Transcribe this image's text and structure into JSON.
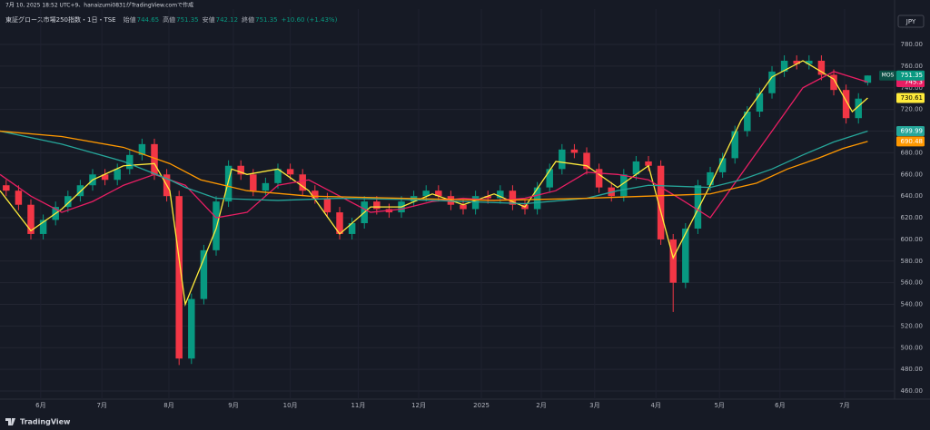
{
  "header": {
    "created": "7月 10, 2025 18:52 UTC+9、hanaizumi0831がTradingView.comで作成",
    "symbol": "東証グロース市場250指数・1日・TSE",
    "ohlc_labels": [
      "始値",
      "高値",
      "安値",
      "終値"
    ],
    "change": "+10.60 (+1.43%)",
    "currency": "JPY",
    "brand": "TradingView"
  },
  "chart_data": {
    "type": "candlestick",
    "x": [
      2,
      6,
      10,
      14,
      18,
      22,
      26,
      30,
      34,
      38,
      42,
      46,
      50,
      54,
      58,
      62,
      66,
      70,
      74,
      78,
      82,
      86,
      90,
      94,
      98,
      102,
      106,
      110,
      114,
      118,
      122,
      126,
      130,
      134,
      138,
      142,
      146,
      150,
      154,
      158,
      162,
      166,
      170,
      174,
      178,
      182,
      186,
      190,
      194,
      198,
      202,
      206,
      210,
      214,
      218,
      222,
      226,
      230,
      234,
      238,
      242,
      246,
      250,
      254,
      258,
      262,
      266,
      270,
      274,
      278,
      281
    ],
    "open": [
      650,
      645,
      632,
      605,
      618,
      630,
      640,
      650,
      660,
      655,
      665,
      678,
      688,
      660,
      640,
      490,
      545,
      590,
      635,
      668,
      660,
      645,
      652,
      665,
      660,
      645,
      638,
      625,
      605,
      615,
      635,
      628,
      625,
      635,
      640,
      645,
      640,
      632,
      628,
      640,
      638,
      645,
      632,
      628,
      648,
      665,
      683,
      680,
      665,
      648,
      640,
      660,
      672,
      668,
      600,
      560,
      610,
      650,
      662,
      675,
      700,
      718,
      735,
      755,
      765,
      762,
      765,
      752,
      738,
      712,
      744.65
    ],
    "high": [
      655,
      650,
      637,
      623,
      635,
      645,
      655,
      665,
      665,
      670,
      683,
      693,
      693,
      665,
      645,
      550,
      595,
      640,
      673,
      673,
      665,
      657,
      670,
      670,
      665,
      650,
      643,
      630,
      620,
      640,
      640,
      633,
      640,
      645,
      650,
      650,
      645,
      637,
      645,
      645,
      650,
      650,
      637,
      653,
      670,
      688,
      688,
      685,
      670,
      653,
      665,
      677,
      677,
      673,
      605,
      615,
      655,
      667,
      680,
      705,
      723,
      740,
      760,
      770,
      770,
      770,
      770,
      757,
      743,
      735,
      751.35
    ],
    "low": [
      640,
      627,
      600,
      600,
      613,
      625,
      635,
      645,
      650,
      650,
      660,
      673,
      655,
      635,
      484,
      485,
      540,
      585,
      630,
      655,
      640,
      640,
      647,
      655,
      640,
      633,
      620,
      600,
      600,
      610,
      623,
      620,
      620,
      630,
      635,
      635,
      627,
      623,
      623,
      633,
      633,
      627,
      623,
      623,
      643,
      660,
      675,
      660,
      643,
      635,
      635,
      655,
      663,
      595,
      533,
      555,
      605,
      645,
      657,
      670,
      695,
      713,
      730,
      750,
      757,
      757,
      747,
      733,
      707,
      707,
      742.12
    ],
    "close": [
      645,
      632,
      605,
      618,
      630,
      640,
      650,
      660,
      655,
      665,
      678,
      688,
      660,
      640,
      490,
      545,
      590,
      635,
      668,
      660,
      645,
      652,
      665,
      660,
      645,
      638,
      625,
      605,
      615,
      635,
      628,
      625,
      635,
      640,
      645,
      640,
      632,
      628,
      640,
      638,
      645,
      632,
      628,
      648,
      665,
      683,
      680,
      665,
      648,
      640,
      660,
      672,
      668,
      600,
      560,
      610,
      650,
      662,
      675,
      700,
      718,
      735,
      755,
      765,
      762,
      765,
      752,
      738,
      712,
      730,
      751.35
    ],
    "up_color": "#089981",
    "down_color": "#f23645",
    "last_label": "MOS",
    "ma": [
      {
        "color": "#ffeb3b",
        "x": [
          0,
          10,
          20,
          30,
          40,
          50,
          55,
          60,
          70,
          75,
          80,
          90,
          100,
          110,
          120,
          130,
          140,
          150,
          160,
          170,
          180,
          190,
          200,
          210,
          218,
          230,
          240,
          250,
          260,
          270,
          276,
          281
        ],
        "values": [
          645,
          608,
          628,
          655,
          668,
          670,
          645,
          540,
          610,
          665,
          660,
          665,
          645,
          605,
          630,
          630,
          642,
          632,
          642,
          630,
          672,
          668,
          648,
          668,
          583,
          650,
          710,
          750,
          765,
          748,
          718,
          730.61
        ]
      },
      {
        "color": "#e91e63",
        "x": [
          0,
          10,
          20,
          30,
          40,
          50,
          60,
          70,
          80,
          90,
          100,
          110,
          120,
          130,
          140,
          150,
          160,
          170,
          180,
          190,
          200,
          210,
          220,
          230,
          240,
          250,
          260,
          270,
          281
        ],
        "values": [
          660,
          640,
          625,
          635,
          650,
          660,
          650,
          620,
          625,
          650,
          655,
          640,
          625,
          628,
          635,
          638,
          636,
          638,
          645,
          662,
          660,
          655,
          638,
          620,
          660,
          700,
          740,
          755,
          745.3
        ]
      },
      {
        "color": "#26a69a",
        "x": [
          0,
          20,
          40,
          55,
          60,
          70,
          90,
          110,
          130,
          150,
          170,
          190,
          200,
          210,
          230,
          240,
          250,
          260,
          270,
          281
        ],
        "values": [
          700,
          688,
          672,
          655,
          648,
          638,
          636,
          638,
          637,
          635,
          633,
          638,
          645,
          650,
          648,
          655,
          665,
          678,
          690,
          699.99
        ]
      },
      {
        "color": "#ff9800",
        "x": [
          0,
          20,
          40,
          55,
          65,
          80,
          100,
          130,
          160,
          190,
          210,
          230,
          245,
          255,
          265,
          273,
          281
        ],
        "values": [
          700,
          695,
          685,
          670,
          655,
          645,
          640,
          638,
          636,
          638,
          640,
          642,
          652,
          665,
          675,
          684,
          690.48
        ]
      }
    ],
    "xlim": [
      0,
      289.7
    ],
    "xticks": [
      {
        "value": 13.2,
        "label": "6月"
      },
      {
        "value": 33,
        "label": "7月"
      },
      {
        "value": 54.7,
        "label": "8月"
      },
      {
        "value": 75.6,
        "label": "9月"
      },
      {
        "value": 94,
        "label": "10月"
      },
      {
        "value": 116,
        "label": "11月"
      },
      {
        "value": 135.6,
        "label": "12月"
      },
      {
        "value": 155.9,
        "label": "2025"
      },
      {
        "value": 175.3,
        "label": "2月"
      },
      {
        "value": 192.6,
        "label": "3月"
      },
      {
        "value": 212.4,
        "label": "4月"
      },
      {
        "value": 233,
        "label": "5月"
      },
      {
        "value": 252.6,
        "label": "6月"
      },
      {
        "value": 273.5,
        "label": "7月"
      }
    ],
    "ylim": [
      452.5,
      812.7
    ],
    "yticks": [
      {
        "value": 460,
        "label": "460.00"
      },
      {
        "value": 480,
        "label": "480.00"
      },
      {
        "value": 500,
        "label": "500.00"
      },
      {
        "value": 520,
        "label": "520.00"
      },
      {
        "value": 540,
        "label": "540.00"
      },
      {
        "value": 560,
        "label": "560.00"
      },
      {
        "value": 580,
        "label": "580.00"
      },
      {
        "value": 600,
        "label": "600.00"
      },
      {
        "value": 620,
        "label": "620.00"
      },
      {
        "value": 640,
        "label": "640.00"
      },
      {
        "value": 660,
        "label": "660.00"
      },
      {
        "value": 680,
        "label": "680.00"
      },
      {
        "value": 700,
        "label": "700.00"
      },
      {
        "value": 720,
        "label": "720.00"
      },
      {
        "value": 740,
        "label": "740.00"
      },
      {
        "value": 760,
        "label": "760.00"
      },
      {
        "value": 780,
        "label": "780.00"
      }
    ],
    "grid": true
  }
}
